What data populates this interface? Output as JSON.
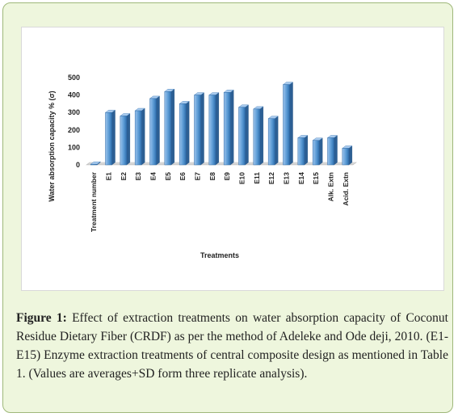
{
  "chart_data": {
    "type": "bar",
    "title": "",
    "xlabel": "Treatments",
    "ylabel": "Water absorption capacity % (σ)",
    "categories": [
      "Treatment number",
      "E1",
      "E2",
      "E3",
      "E4",
      "E5",
      "E6",
      "E7",
      "E8",
      "E9",
      "E10",
      "E11",
      "E12",
      "E13",
      "E14",
      "E15",
      "Alk. Extn",
      "Acid. Extn"
    ],
    "values": [
      0,
      300,
      280,
      310,
      380,
      420,
      350,
      400,
      400,
      415,
      330,
      320,
      265,
      460,
      155,
      140,
      155,
      95
    ],
    "yticks": [
      0,
      100,
      200,
      300,
      400,
      500
    ],
    "ylim": [
      0,
      500
    ],
    "grid": false,
    "bar_color": "#5b9bd5"
  },
  "caption": {
    "label": "Figure 1:",
    "text": "Effect of extraction treatments on water absorption capacity of Coconut Residue Dietary Fiber (CRDF) as per the method of Adeleke and Ode deji, 2010. (E1-E15) Enzyme extraction treatments of central composite design as mentioned in Table 1. (Values are averages+SD form three replicate analysis)."
  }
}
